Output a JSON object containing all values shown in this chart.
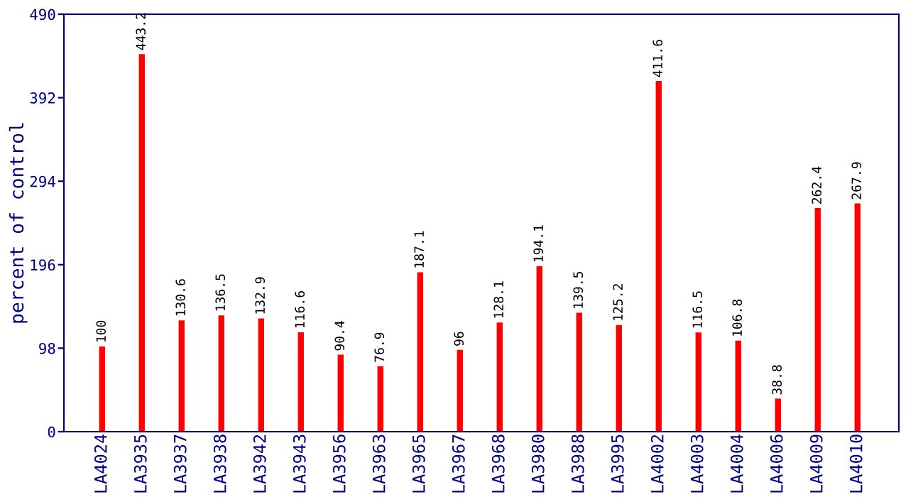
{
  "chart_data": {
    "type": "bar",
    "ylabel": "percent of control",
    "categories": [
      "LA4024",
      "LA3935",
      "LA3937",
      "LA3938",
      "LA3942",
      "LA3943",
      "LA3956",
      "LA3963",
      "LA3965",
      "LA3967",
      "LA3968",
      "LA3980",
      "LA3988",
      "LA3995",
      "LA4002",
      "LA4003",
      "LA4004",
      "LA4006",
      "LA4009",
      "LA4010"
    ],
    "values": [
      100,
      443.2,
      130.6,
      136.5,
      132.9,
      116.6,
      90.4,
      76.9,
      187.1,
      96,
      128.1,
      194.1,
      139.5,
      125.2,
      411.6,
      116.5,
      106.8,
      38.8,
      262.4,
      267.9
    ],
    "color": "#ff0000",
    "ylim": [
      0,
      490
    ],
    "yticks": [
      0,
      98,
      196,
      294,
      392,
      490
    ],
    "data_labels": true,
    "grid": false,
    "legend": false
  }
}
